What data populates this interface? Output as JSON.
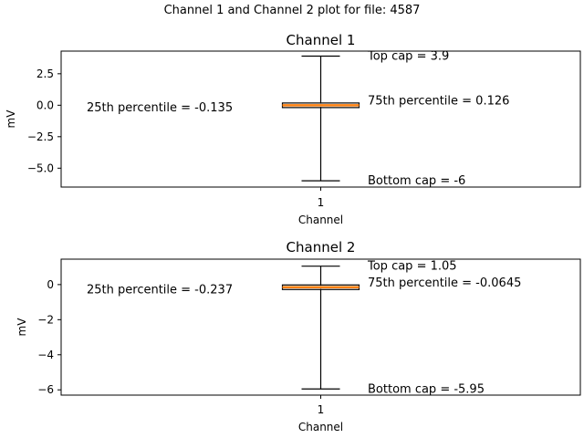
{
  "figure_title": "Channel 1 and Channel 2 plot for file: 4587",
  "colors": {
    "median_line": "#ff7f0e",
    "box_edge": "#000000",
    "box_fill": "none"
  },
  "chart_data": [
    {
      "type": "box",
      "title": "Channel 1",
      "xlabel": "Channel",
      "ylabel": "mV",
      "categories": [
        "1"
      ],
      "ylim": [
        -6.5,
        4.3
      ],
      "yticks": [
        2.5,
        0.0,
        -2.5,
        -5.0
      ],
      "ytick_labels": [
        "2.5",
        "0.0",
        "−2.5",
        "−5.0"
      ],
      "box": {
        "whisker_low": -6,
        "q1": -0.135,
        "median": -0.005,
        "q3": 0.126,
        "whisker_high": 3.9
      },
      "annotations": {
        "top_cap": "Top cap =    3.9",
        "p75": "75th percentile =  0.126",
        "p25": "25th percentile = -0.135",
        "bottom_cap": "Bottom cap =     -6"
      }
    },
    {
      "type": "box",
      "title": "Channel 2",
      "xlabel": "Channel",
      "ylabel": "mV",
      "categories": [
        "1"
      ],
      "ylim": [
        -6.3,
        1.45
      ],
      "yticks": [
        0,
        -2,
        -4,
        -6
      ],
      "ytick_labels": [
        "0",
        "−2",
        "−4",
        "−6"
      ],
      "box": {
        "whisker_low": -5.95,
        "q1": -0.237,
        "median": -0.15,
        "q3": -0.0645,
        "whisker_high": 1.05
      },
      "annotations": {
        "top_cap": "Top cap =   1.05",
        "p75": "75th percentile = -0.0645",
        "p25": "25th percentile = -0.237",
        "bottom_cap": "Bottom cap =  -5.95"
      }
    }
  ]
}
